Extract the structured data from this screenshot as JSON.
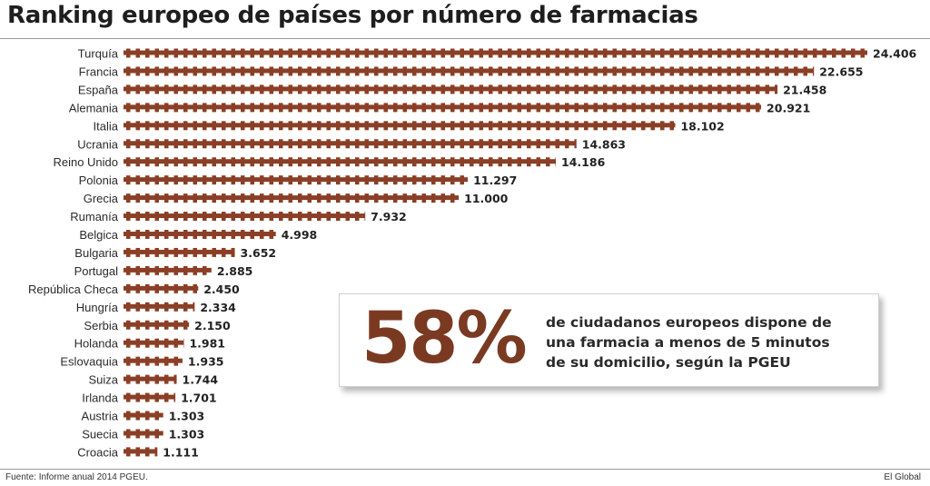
{
  "header": {
    "title": "Ranking europeo de países por número de farmacias"
  },
  "chart_data": {
    "type": "bar",
    "orientation": "horizontal",
    "categories": [
      "Turquía",
      "Francia",
      "España",
      "Alemania",
      "Italia",
      "Ucrania",
      "Reino Unido",
      "Polonia",
      "Grecia",
      "Rumanía",
      "Belgica",
      "Bulgaria",
      "Portugal",
      "República Checa",
      "Hungría",
      "Serbia",
      "Holanda",
      "Eslovaquia",
      "Suiza",
      "Irlanda",
      "Austria",
      "Suecia",
      "Croacia"
    ],
    "values": [
      24406,
      22655,
      21458,
      20921,
      18102,
      14863,
      14186,
      11297,
      11000,
      7932,
      4998,
      3652,
      2885,
      2450,
      2334,
      2150,
      1981,
      1935,
      1744,
      1701,
      1303,
      1303,
      1111
    ],
    "value_labels": [
      "24.406",
      "22.655",
      "21.458",
      "20.921",
      "18.102",
      "14.863",
      "14.186",
      "11.297",
      "11.000",
      "7.932",
      "4.998",
      "3.652",
      "2.885",
      "2.450",
      "2.334",
      "2.150",
      "1.981",
      "1.935",
      "1.744",
      "1.701",
      "1.303",
      "1.303",
      "1.111"
    ],
    "bar_style": "pharmacy crosses",
    "bar_color": "#8a3f26",
    "grid": false,
    "legend": "none"
  },
  "callout": {
    "percent": "58%",
    "lines": [
      "de ciudadanos europeos dispone de",
      "una farmacia a menos de 5 minutos",
      "de su domicilio, según la PGEU"
    ]
  },
  "footer": {
    "source": "Fuente: Informe anual 2014 PGEU.",
    "brand": "El Global"
  }
}
